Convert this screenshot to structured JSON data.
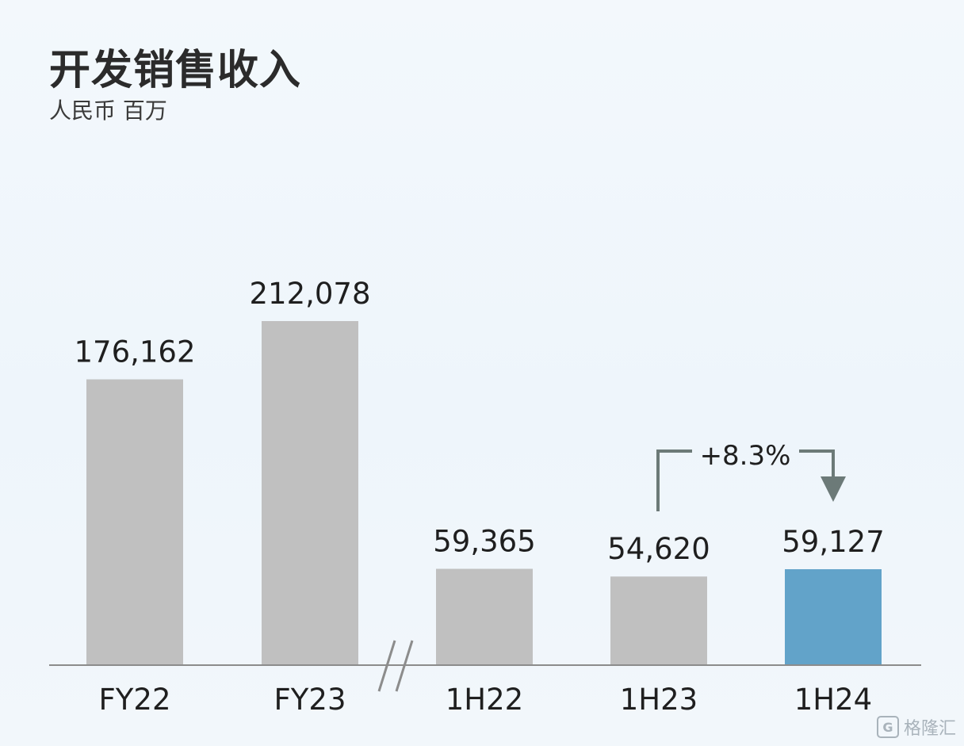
{
  "chart_data": {
    "type": "bar",
    "title": "开发销售收入",
    "subtitle": "人民币 百万",
    "categories": [
      "FY22",
      "FY23",
      "1H22",
      "1H23",
      "1H24"
    ],
    "values": [
      176162,
      212078,
      59365,
      54620,
      59127
    ],
    "value_labels": [
      "176,162",
      "212,078",
      "59,365",
      "54,620",
      "59,127"
    ],
    "ylim": [
      0,
      212078
    ],
    "axis_break_between": [
      "FY23",
      "1H22"
    ],
    "highlight_category": "1H24",
    "change_annotation": {
      "from": "1H23",
      "to": "1H24",
      "label": "+8.3%"
    },
    "colors": {
      "bar": "#c0c0c0",
      "highlight": "#62a3c9",
      "axis": "#8c8c8c",
      "arrow": "#6c7a78"
    },
    "grid": false,
    "legend": "none"
  },
  "watermark": {
    "icon": "G",
    "text": "格隆汇"
  }
}
